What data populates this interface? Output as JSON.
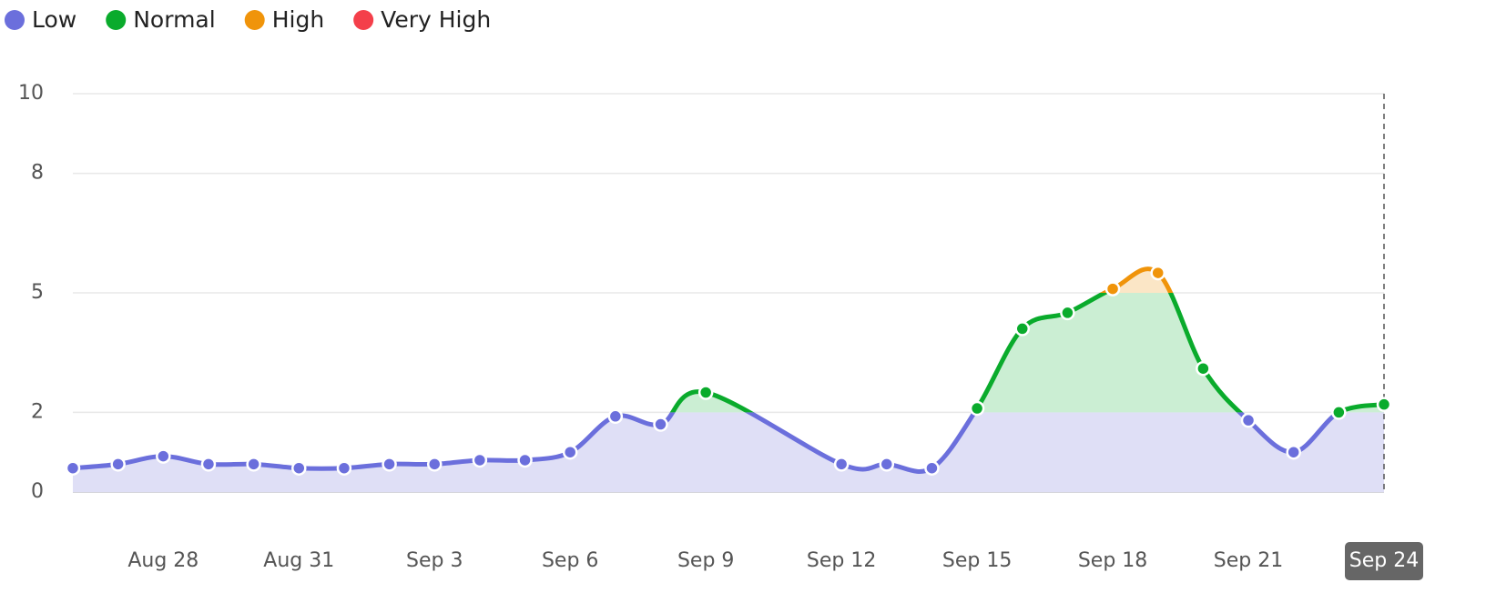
{
  "chart_data": {
    "type": "line",
    "bands": [
      {
        "name": "Low",
        "color": "#6b6fdc",
        "fill": "#dfdff6",
        "from": 0,
        "to": 2
      },
      {
        "name": "Normal",
        "color": "#0aab2c",
        "fill": "#cbeed3",
        "from": 2,
        "to": 5
      },
      {
        "name": "High",
        "color": "#f0940a",
        "fill": "#fbe6c6",
        "from": 5,
        "to": 8
      },
      {
        "name": "Very High",
        "color": "#f43f4a",
        "fill": "#fcd6d8",
        "from": 8,
        "to": 10
      }
    ],
    "x": [
      "Aug 26",
      "Aug 27",
      "Aug 28",
      "Aug 29",
      "Aug 30",
      "Aug 31",
      "Sep 1",
      "Sep 2",
      "Sep 3",
      "Sep 4",
      "Sep 5",
      "Sep 6",
      "Sep 7",
      "Sep 8",
      "Sep 9",
      "Sep 12",
      "Sep 13",
      "Sep 14",
      "Sep 15",
      "Sep 16",
      "Sep 17",
      "Sep 18",
      "Sep 19",
      "Sep 20",
      "Sep 21",
      "Sep 22",
      "Sep 23",
      "Sep 24"
    ],
    "values": [
      0.6,
      0.7,
      0.9,
      0.7,
      0.7,
      0.6,
      0.6,
      0.7,
      0.7,
      0.8,
      0.8,
      1.0,
      1.9,
      1.7,
      2.5,
      0.7,
      0.7,
      0.6,
      2.1,
      4.1,
      4.5,
      5.1,
      5.5,
      3.1,
      1.8,
      1.0,
      2.0,
      2.2
    ],
    "xlim": [
      "Aug 26",
      "Sep 24"
    ],
    "xticks": [
      "Aug 28",
      "Aug 31",
      "Sep 3",
      "Sep 6",
      "Sep 9",
      "Sep 12",
      "Sep 15",
      "Sep 18",
      "Sep 21",
      "Sep 24"
    ],
    "ylim": [
      0,
      10
    ],
    "yticks": [
      0,
      2,
      5,
      8,
      10
    ],
    "grid": true
  }
}
